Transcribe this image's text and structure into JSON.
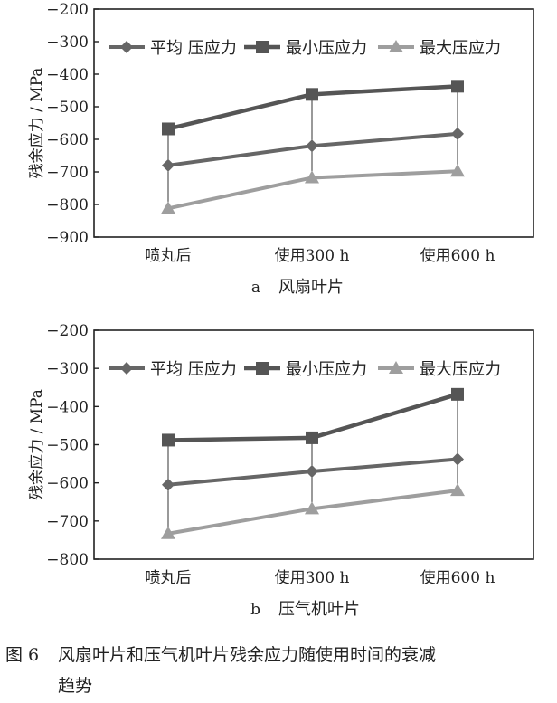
{
  "figure_caption": {
    "number": "图 6",
    "text_line1": "风扇叶片和压气机叶片残余应力随使用时间的衰减",
    "text_line2": "趋势"
  },
  "colors": {
    "avg": "#666666",
    "min": "#555555",
    "max": "#9e9e9e",
    "axis": "#222222"
  },
  "chart_data": [
    {
      "type": "line",
      "title": "",
      "panel_label": "a",
      "panel_title": "风扇叶片",
      "xlabel": "",
      "ylabel": "残余应力 / MPa",
      "categories": [
        "喷丸后",
        "使用300 h",
        "使用600 h"
      ],
      "ylim": [
        -900,
        -200
      ],
      "yticks": [
        "−200",
        "−300",
        "−400",
        "−500",
        "−600",
        "−700",
        "−800",
        "−900"
      ],
      "ytick_values": [
        -200,
        -300,
        -400,
        -500,
        -600,
        -700,
        -800,
        -900
      ],
      "legend_position": "top",
      "series": [
        {
          "name": "平均 压应力",
          "marker": "diamond",
          "values": [
            -680,
            -620,
            -583
          ]
        },
        {
          "name": "最小压应力",
          "marker": "square",
          "values": [
            -568,
            -462,
            -437
          ]
        },
        {
          "name": "最大压应力",
          "marker": "triangle",
          "values": [
            -812,
            -718,
            -698
          ]
        }
      ]
    },
    {
      "type": "line",
      "title": "",
      "panel_label": "b",
      "panel_title": "压气机叶片",
      "xlabel": "",
      "ylabel": "残余应力 / MPa",
      "categories": [
        "喷丸后",
        "使用300 h",
        "使用600 h"
      ],
      "ylim": [
        -800,
        -200
      ],
      "yticks": [
        "−200",
        "−300",
        "−400",
        "−500",
        "−600",
        "−700",
        "−800"
      ],
      "ytick_values": [
        -200,
        -300,
        -400,
        -500,
        -600,
        -700,
        -800
      ],
      "legend_position": "top",
      "series": [
        {
          "name": "平均 压应力",
          "marker": "diamond",
          "values": [
            -605,
            -570,
            -538
          ]
        },
        {
          "name": "最小压应力",
          "marker": "square",
          "values": [
            -488,
            -482,
            -368
          ]
        },
        {
          "name": "最大压应力",
          "marker": "triangle",
          "values": [
            -733,
            -668,
            -620
          ]
        }
      ]
    }
  ]
}
